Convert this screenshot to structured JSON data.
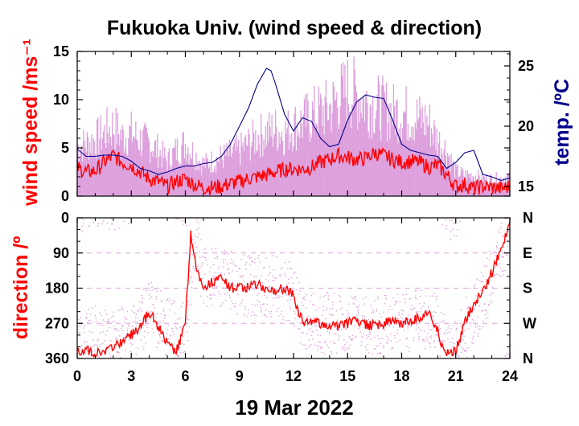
{
  "chart_data": [
    {
      "type": "line",
      "title": "Fukuoka Univ. (wind speed & direction)",
      "xlabel": "19 Mar 2022",
      "ylabel": "wind speed /ms⁻¹",
      "y2label": "temp. /ºC",
      "xlim": [
        0,
        24
      ],
      "ylim": [
        0,
        15
      ],
      "y2lim": [
        14.2,
        26.2
      ],
      "x_ticks": [
        "0",
        "3",
        "6",
        "9",
        "12",
        "15",
        "18",
        "21",
        "24"
      ],
      "y_ticks": [
        "0",
        "5",
        "10",
        "15"
      ],
      "y2_ticks": [
        "15",
        "20",
        "25"
      ],
      "grid": false,
      "colors": {
        "gust": "#dda0dd",
        "mean": "#ff0000",
        "temp": "#00008b",
        "label_red": "#ff0000",
        "label_blue": "#00008b"
      },
      "series": [
        {
          "name": "",
          "role": "gust",
          "x": [
            0,
            0.5,
            1,
            1.5,
            2,
            2.5,
            3,
            3.5,
            4,
            4.5,
            5,
            5.5,
            6,
            6.5,
            7,
            7.5,
            8,
            8.5,
            9,
            9.5,
            10,
            10.5,
            11,
            11.5,
            12,
            12.5,
            13,
            13.5,
            14,
            14.5,
            15,
            15.5,
            16,
            16.5,
            17,
            17.5,
            18,
            18.5,
            19,
            19.5,
            20,
            20.5,
            21,
            21.5,
            22,
            22.5,
            23,
            23.5,
            24
          ],
          "values": [
            7.0,
            7.5,
            8.0,
            9.0,
            10.0,
            8.5,
            9.0,
            8.0,
            7.5,
            6.5,
            5.0,
            6.5,
            7.5,
            6.0,
            4.5,
            5.0,
            5.5,
            6.0,
            6.5,
            7.5,
            8.5,
            9.0,
            9.5,
            9.0,
            10.0,
            10.5,
            11.5,
            12.0,
            12.5,
            14.0,
            15.0,
            14.5,
            13.5,
            13.0,
            12.5,
            12.0,
            12.0,
            11.5,
            11.0,
            10.5,
            8.0,
            6.5,
            3.5,
            3.0,
            3.0,
            2.5,
            2.5,
            2.5,
            3.0
          ]
        },
        {
          "name": "",
          "role": "mean",
          "x": [
            0,
            0.5,
            1,
            1.5,
            2,
            2.5,
            3,
            3.5,
            4,
            4.5,
            5,
            5.5,
            6,
            6.5,
            7,
            7.5,
            8,
            8.5,
            9,
            9.5,
            10,
            10.5,
            11,
            11.5,
            12,
            12.5,
            13,
            13.5,
            14,
            14.5,
            15,
            15.5,
            16,
            16.5,
            17,
            17.5,
            18,
            18.5,
            19,
            19.5,
            20,
            20.5,
            21,
            21.5,
            22,
            22.5,
            23,
            23.5,
            24
          ],
          "values": [
            3.0,
            2.5,
            2.6,
            3.5,
            4.2,
            3.5,
            3.2,
            2.5,
            1.8,
            1.5,
            1.0,
            1.5,
            1.8,
            1.2,
            0.9,
            0.9,
            1.0,
            1.3,
            1.5,
            1.8,
            2.0,
            2.2,
            2.5,
            2.8,
            2.8,
            2.8,
            3.0,
            3.5,
            3.8,
            4.2,
            4.0,
            3.8,
            3.9,
            4.5,
            4.2,
            3.8,
            3.5,
            3.6,
            3.5,
            3.0,
            3.2,
            2.2,
            1.0,
            1.2,
            0.8,
            1.0,
            0.9,
            0.8,
            1.0
          ]
        },
        {
          "name": "",
          "role": "temp",
          "axis": "right",
          "x": [
            0,
            0.5,
            1,
            1.5,
            2,
            2.5,
            3,
            3.5,
            4,
            4.5,
            5,
            5.5,
            6,
            6.5,
            7,
            7.5,
            8,
            8.5,
            9,
            9.5,
            10,
            10.5,
            10.75,
            11,
            11.5,
            12,
            12.5,
            13,
            13.5,
            14,
            14.5,
            15,
            15.5,
            16,
            16.5,
            17,
            17.5,
            18,
            18.5,
            19,
            19.5,
            20,
            20.5,
            21,
            21.5,
            22,
            22.5,
            23,
            23.5,
            24
          ],
          "values": [
            18.1,
            17.5,
            17.5,
            17.6,
            17.6,
            17.5,
            17.1,
            16.5,
            16.3,
            16.0,
            16.2,
            16.5,
            16.7,
            16.7,
            16.9,
            17.0,
            17.5,
            18.5,
            20.0,
            21.5,
            23.5,
            24.8,
            24.6,
            23.5,
            21.0,
            19.6,
            20.7,
            20.4,
            19.0,
            18.3,
            18.5,
            20.5,
            22.0,
            22.6,
            22.4,
            22.3,
            20.5,
            18.5,
            18.0,
            17.8,
            17.6,
            17.5,
            16.5,
            17.0,
            17.8,
            18.0,
            16.0,
            15.8,
            15.5,
            15.7
          ]
        }
      ]
    },
    {
      "type": "scatter",
      "xlabel": "19 Mar 2022",
      "ylabel": "direction /º",
      "xlim": [
        0,
        24
      ],
      "ylim": [
        0,
        360
      ],
      "y_inverted": true,
      "x_ticks": [
        "0",
        "3",
        "6",
        "9",
        "12",
        "15",
        "18",
        "21",
        "24"
      ],
      "y_ticks": [
        "0",
        "90",
        "180",
        "270",
        "360"
      ],
      "y2_ticks": [
        "N",
        "E",
        "S",
        "W",
        "N"
      ],
      "grid": true,
      "colors": {
        "points": "#dda0dd",
        "mean": "#ff0000",
        "grid": "#dda0dd"
      },
      "series": [
        {
          "name": "",
          "role": "mean",
          "x": [
            0,
            0.5,
            1,
            1.5,
            2,
            2.5,
            3,
            3.5,
            4,
            4.5,
            5,
            5.5,
            6,
            6.3,
            6.6,
            7,
            7.5,
            8,
            8.5,
            9,
            9.5,
            10,
            10.5,
            11,
            11.5,
            12,
            12.3,
            12.6,
            13,
            13.5,
            14,
            14.5,
            15,
            15.5,
            16,
            16.5,
            17,
            17.5,
            18,
            18.5,
            19,
            19.5,
            20,
            20.3,
            20.6,
            21,
            21.5,
            22,
            22.5,
            23,
            23.5,
            24
          ],
          "values": [
            340,
            340,
            345,
            338,
            335,
            315,
            300,
            280,
            240,
            280,
            320,
            340,
            270,
            40,
            130,
            175,
            165,
            150,
            180,
            175,
            180,
            170,
            185,
            185,
            180,
            195,
            250,
            270,
            265,
            270,
            275,
            280,
            270,
            265,
            275,
            275,
            270,
            265,
            270,
            265,
            255,
            240,
            290,
            340,
            350,
            340,
            270,
            220,
            190,
            140,
            80,
            20
          ]
        },
        {
          "name": "",
          "role": "points",
          "x": [
            0,
            1,
            2,
            3,
            4,
            5,
            6,
            6.5,
            7,
            8,
            9,
            10,
            11,
            12,
            12.5,
            13,
            14,
            15,
            16,
            17,
            18,
            19,
            20,
            20.5,
            21,
            22,
            23,
            24
          ],
          "values": [
            330,
            300,
            320,
            290,
            240,
            280,
            300,
            60,
            150,
            160,
            170,
            175,
            170,
            200,
            260,
            265,
            270,
            275,
            270,
            270,
            265,
            260,
            270,
            340,
            330,
            240,
            150,
            30
          ]
        }
      ]
    }
  ]
}
